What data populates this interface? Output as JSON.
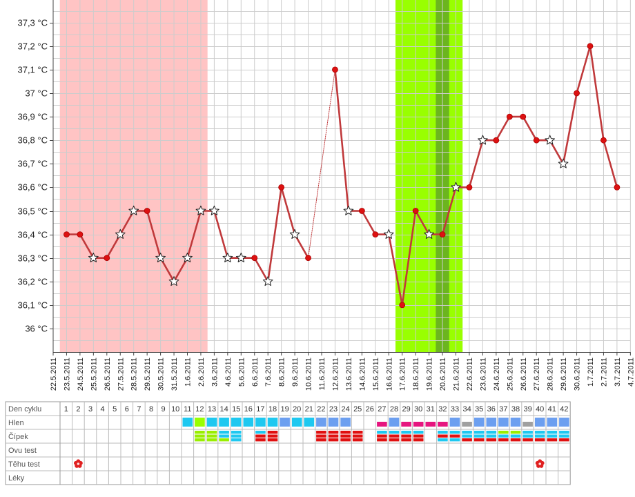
{
  "chart_data": {
    "type": "line",
    "title": "",
    "xlabel": "",
    "ylabel": "",
    "ylim": [
      35.9,
      37.35
    ],
    "y_ticks": [
      {
        "value": 36.0,
        "label": "36 °C"
      },
      {
        "value": 36.1,
        "label": "36,1 °C"
      },
      {
        "value": 36.2,
        "label": "36,2 °C"
      },
      {
        "value": 36.3,
        "label": "36,3 °C"
      },
      {
        "value": 36.4,
        "label": "36,4 °C"
      },
      {
        "value": 36.5,
        "label": "36,5 °C"
      },
      {
        "value": 36.6,
        "label": "36,6 °C"
      },
      {
        "value": 36.7,
        "label": "36,7 °C"
      },
      {
        "value": 36.8,
        "label": "36,8 °C"
      },
      {
        "value": 36.9,
        "label": "36,9 °C"
      },
      {
        "value": 37.0,
        "label": "37 °C"
      },
      {
        "value": 37.1,
        "label": "37,1 °C"
      },
      {
        "value": 37.2,
        "label": "37,2 °C"
      },
      {
        "value": 37.3,
        "label": "37,3 °C"
      }
    ],
    "x_dates": [
      "22.5.2011",
      "23.5.2011",
      "24.5.2011",
      "25.5.2011",
      "26.5.2011",
      "27.5.2011",
      "28.5.2011",
      "29.5.2011",
      "30.5.2011",
      "31.5.2011",
      "1.6.2011",
      "2.6.2011",
      "3.6.2011",
      "4.6.2011",
      "5.6.2011",
      "6.6.2011",
      "7.6.2011",
      "8.6.2011",
      "9.6.2011",
      "10.6.2011",
      "11.6.2011",
      "12.6.2011",
      "13.6.2011",
      "14.6.2011",
      "15.6.2011",
      "16.6.2011",
      "17.6.2011",
      "18.6.2011",
      "19.6.2011",
      "20.6.2011",
      "21.6.2011",
      "22.6.2011",
      "23.6.2011",
      "24.6.2011",
      "25.6.2011",
      "26.6.2011",
      "27.6.2011",
      "28.6.2011",
      "29.6.2011",
      "30.6.2011",
      "1.7.2011",
      "2.7.2011",
      "3.7.2011",
      "4.7.2011"
    ],
    "series": [
      {
        "values": [
          null,
          36.4,
          36.4,
          36.3,
          36.3,
          36.4,
          36.5,
          36.5,
          36.3,
          36.2,
          36.3,
          36.5,
          36.5,
          36.3,
          36.3,
          36.3,
          36.2,
          36.6,
          36.4,
          36.3,
          null,
          37.1,
          36.5,
          36.5,
          36.4,
          36.4,
          36.1,
          36.5,
          36.4,
          36.4,
          36.6,
          36.6,
          36.8,
          36.8,
          36.9,
          36.9,
          36.8,
          36.8,
          36.7,
          37.0,
          37.2,
          36.8,
          36.6,
          null
        ],
        "star_markers": [
          3,
          5,
          6,
          8,
          9,
          10,
          11,
          12,
          13,
          14,
          16,
          18,
          22,
          25,
          28,
          30,
          32,
          37,
          38
        ],
        "color": "#c0393b"
      }
    ],
    "shaded_regions": [
      {
        "from": "23.5.2011",
        "to": "2.6.2011",
        "color": "#ffc4c4"
      },
      {
        "from": "17.6.2011",
        "to": "21.6.2011",
        "color": "#99ff00"
      },
      {
        "from": "20.6.2011",
        "to": "20.6.2011",
        "color": "#6cb51f"
      }
    ],
    "grid": true,
    "colors": {
      "line": "#c0393b",
      "dot": "#dd1111",
      "grid": "#cccccc",
      "hlen_cyan": "#1ec8f0",
      "hlen_blue": "#6c9ff0",
      "hlen_pink": "#e6157f",
      "hlen_grey": "#a0a0a0",
      "hlen_green": "#99ff00",
      "cipek_red": "#e01010",
      "cipek_green": "#99ee00",
      "cipek_cyan": "#1ec8f0"
    }
  },
  "table": {
    "rows": [
      {
        "label": "Den cyklu"
      },
      {
        "label": "Hlen"
      },
      {
        "label": "Čípek"
      },
      {
        "label": "Ovu test"
      },
      {
        "label": "Těhu test"
      },
      {
        "label": "Léky"
      }
    ],
    "days": [
      1,
      2,
      3,
      4,
      5,
      6,
      7,
      8,
      9,
      10,
      11,
      12,
      13,
      14,
      15,
      16,
      17,
      18,
      19,
      20,
      21,
      22,
      23,
      24,
      25,
      26,
      27,
      28,
      29,
      30,
      31,
      32,
      33,
      34,
      35,
      36,
      37,
      38,
      39,
      40,
      41,
      42
    ],
    "hlen": {
      "11": "cyan",
      "12": "green",
      "13": "cyan",
      "14": "cyan",
      "15": "cyan",
      "16": "cyan",
      "17": "cyan",
      "18": "cyan",
      "19": "blue",
      "20": "cyan",
      "21": "cyan",
      "22": "blue",
      "23": "blue",
      "24": "blue",
      "27": "pink_low",
      "28": "blue",
      "29": "pink_low",
      "30": "pink_low",
      "31": "pink_low",
      "32": "pink_low",
      "33": "blue",
      "34": "grey_low",
      "35": "blue",
      "36": "blue",
      "37": "blue",
      "38": "blue",
      "39": "grey_low",
      "40": "blue",
      "41": "blue",
      "42": "blue"
    },
    "cipek": {
      "12": [
        "green",
        "green",
        "green"
      ],
      "13": [
        "green",
        "green",
        "green"
      ],
      "14": [
        "cyan",
        "cyan",
        "green"
      ],
      "15": [
        "cyan",
        "cyan",
        "cyan"
      ],
      "17": [
        "cyan",
        "red",
        "red"
      ],
      "18": [
        "red",
        "red",
        "red"
      ],
      "22": [
        "red",
        "red",
        "red"
      ],
      "23": [
        "red",
        "red",
        "red"
      ],
      "24": [
        "red",
        "red",
        "red"
      ],
      "25": [
        "red",
        "red",
        "red"
      ],
      "27": [
        "cyan",
        "red",
        "red"
      ],
      "28": [
        "cyan",
        "red",
        "red"
      ],
      "29": [
        "cyan",
        "red",
        "red"
      ],
      "30": [
        "cyan",
        "red",
        "red"
      ],
      "32": [
        "cyan",
        "red",
        "cyan"
      ],
      "33": [
        "cyan",
        "red",
        "cyan"
      ],
      "34": [
        "cyan",
        "cyan",
        "red"
      ],
      "35": [
        "cyan",
        "cyan",
        "red"
      ],
      "36": [
        "cyan",
        "cyan",
        "red"
      ],
      "37": [
        "green",
        "cyan",
        "red"
      ],
      "38": [
        "green",
        "cyan",
        "red"
      ],
      "39": [
        "cyan",
        "cyan",
        "red"
      ],
      "40": [
        "cyan",
        "cyan",
        "red"
      ],
      "41": [
        "cyan",
        "cyan",
        "red"
      ],
      "42": [
        "cyan",
        "cyan",
        "red"
      ]
    },
    "tehu_test": [
      2,
      40
    ],
    "tehu_test_icon": "flower-icon"
  }
}
